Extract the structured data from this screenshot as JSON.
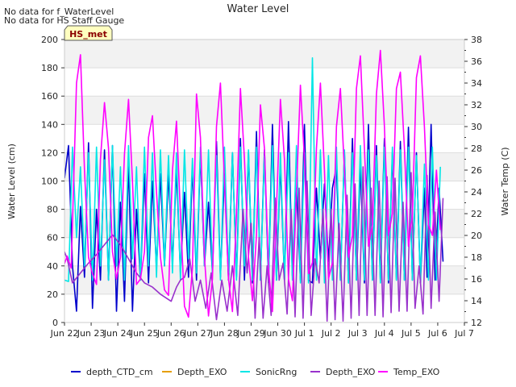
{
  "chart_data": {
    "type": "line",
    "title": "Water Level",
    "notes": [
      "No data for f_WaterLevel",
      "No data for HS Staff Gauge"
    ],
    "station_badge": "HS_met",
    "ylabel_left": "Water Level (cm)",
    "ylabel_right": "Water Temp (C)",
    "ylim_left": [
      0,
      200
    ],
    "ylim_right": [
      12,
      38
    ],
    "yticks_left": [
      0,
      20,
      40,
      60,
      80,
      100,
      120,
      140,
      160,
      180,
      200
    ],
    "yticks_right": [
      12,
      14,
      16,
      18,
      20,
      22,
      24,
      26,
      28,
      30,
      32,
      34,
      36,
      38
    ],
    "x_range": [
      0,
      15
    ],
    "x_ticks": [
      {
        "x": 0,
        "label": "Jun 22"
      },
      {
        "x": 1,
        "label": "Jun 23"
      },
      {
        "x": 2,
        "label": "Jun 24"
      },
      {
        "x": 3,
        "label": "Jun 25"
      },
      {
        "x": 4,
        "label": "Jun 26"
      },
      {
        "x": 5,
        "label": "Jun 27"
      },
      {
        "x": 6,
        "label": "Jun 28"
      },
      {
        "x": 7,
        "label": "Jun 29"
      },
      {
        "x": 8,
        "label": "Jun 30"
      },
      {
        "x": 9,
        "label": "Jul 1"
      },
      {
        "x": 10,
        "label": "Jul 2"
      },
      {
        "x": 11,
        "label": "Jul 3"
      },
      {
        "x": 12,
        "label": "Jul 4"
      },
      {
        "x": 13,
        "label": "Jul 5"
      },
      {
        "x": 14,
        "label": "Jul 6"
      },
      {
        "x": 15,
        "label": "Jul 7"
      }
    ],
    "legend": [
      {
        "name": "depth_CTD_cm",
        "color": "#0000cc"
      },
      {
        "name": "Depth_EXO",
        "color": "#e69f00"
      },
      {
        "name": "SonicRng",
        "color": "#00e6e6"
      },
      {
        "name": "Depth_EXO",
        "color": "#9932cc"
      },
      {
        "name": "Temp_EXO",
        "color": "#ff00ff"
      }
    ],
    "series": [
      {
        "name": "depth_CTD_cm",
        "axis": "left",
        "color": "#0000cc",
        "x": [
          0.0,
          0.15,
          0.3,
          0.45,
          0.6,
          0.75,
          0.9,
          1.05,
          1.2,
          1.35,
          1.5,
          1.65,
          1.8,
          1.95,
          2.1,
          2.25,
          2.4,
          2.55,
          2.7,
          2.85,
          3.0,
          3.15,
          3.3,
          3.45,
          3.6,
          3.75,
          3.9,
          4.05,
          4.2,
          4.35,
          4.5,
          4.65,
          4.8,
          4.95,
          5.1,
          5.25,
          5.4,
          5.55,
          5.7,
          5.85,
          6.0,
          6.15,
          6.3,
          6.45,
          6.6,
          6.75,
          6.9,
          7.05,
          7.2,
          7.35,
          7.5,
          7.65,
          7.8,
          7.95,
          8.1,
          8.25,
          8.4,
          8.55,
          8.7,
          8.85,
          9.0,
          9.15,
          9.3,
          9.45,
          9.6,
          9.75,
          9.9,
          10.05,
          10.2,
          10.35,
          10.5,
          10.65,
          10.8,
          10.95,
          11.1,
          11.25,
          11.4,
          11.55,
          11.7,
          11.85,
          12.0,
          12.15,
          12.3,
          12.45,
          12.6,
          12.75,
          12.9,
          13.05,
          13.2,
          13.35,
          13.5,
          13.6,
          13.75,
          13.9,
          14.05,
          14.2
        ],
        "y": [
          102,
          125,
          40,
          8,
          82,
          32,
          127,
          10,
          80,
          30,
          122,
          30,
          125,
          8,
          85,
          15,
          112,
          8,
          80,
          30,
          105,
          28,
          100,
          38,
          105,
          40,
          105,
          42,
          108,
          35,
          92,
          32,
          110,
          30,
          120,
          40,
          85,
          35,
          128,
          32,
          105,
          30,
          120,
          32,
          130,
          30,
          120,
          28,
          135,
          30,
          122,
          28,
          140,
          30,
          112,
          30,
          142,
          33,
          95,
          30,
          140,
          30,
          28,
          95,
          45,
          98,
          43,
          95,
          110,
          30,
          120,
          28,
          130,
          30,
          110,
          28,
          140,
          30,
          125,
          30,
          130,
          28,
          120,
          30,
          128,
          30,
          138,
          30,
          120,
          28,
          95,
          32,
          140,
          30,
          95,
          43
        ]
      },
      {
        "name": "SonicRng",
        "axis": "left",
        "color": "#00e6e6",
        "x": [
          0.0,
          0.15,
          0.3,
          0.45,
          0.6,
          0.75,
          0.9,
          1.05,
          1.2,
          1.35,
          1.5,
          1.65,
          1.8,
          1.95,
          2.1,
          2.25,
          2.4,
          2.55,
          2.7,
          2.85,
          3.0,
          3.15,
          3.3,
          3.45,
          3.6,
          3.75,
          3.9,
          4.05,
          4.2,
          4.35,
          4.5,
          4.65,
          4.8,
          4.95,
          5.1,
          5.25,
          5.4,
          5.55,
          5.7,
          5.85,
          6.0,
          6.15,
          6.3,
          6.45,
          6.6,
          6.75,
          6.9,
          7.05,
          7.2,
          7.35,
          7.5,
          7.65,
          7.8,
          7.95,
          8.1,
          8.25,
          8.4,
          8.55,
          8.7,
          8.85,
          9.0,
          9.15,
          9.3,
          9.45,
          9.6,
          9.75,
          9.9,
          10.05,
          10.2,
          10.35,
          10.5,
          10.65,
          10.8,
          10.95,
          11.1,
          11.25,
          11.4,
          11.55,
          11.7,
          11.85,
          12.0,
          12.15,
          12.3,
          12.45,
          12.6,
          12.75,
          12.9,
          13.05,
          13.2,
          13.35,
          13.5,
          13.65,
          13.8,
          13.95,
          14.1
        ],
        "y": [
          30,
          29,
          124,
          60,
          110,
          40,
          120,
          30,
          124,
          40,
          115,
          30,
          125,
          40,
          110,
          30,
          125,
          45,
          110,
          30,
          124,
          40,
          120,
          32,
          122,
          40,
          118,
          35,
          120,
          30,
          122,
          45,
          116,
          35,
          124,
          40,
          122,
          35,
          118,
          30,
          124,
          35,
          120,
          30,
          124,
          40,
          122,
          30,
          124,
          30,
          118,
          30,
          125,
          30,
          120,
          30,
          120,
          30,
          125,
          28,
          120,
          28,
          187,
          30,
          122,
          28,
          118,
          30,
          124,
          30,
          122,
          28,
          120,
          30,
          125,
          30,
          122,
          30,
          118,
          28,
          124,
          30,
          124,
          30,
          122,
          30,
          124,
          30,
          118,
          30,
          112,
          30,
          124,
          30,
          110
        ]
      },
      {
        "name": "Depth_EXO",
        "axis": "left",
        "color": "#9932cc",
        "x": [
          0.0,
          0.1,
          0.3,
          0.6,
          0.9,
          1.2,
          1.5,
          1.8,
          2.1,
          2.4,
          2.7,
          3.0,
          3.3,
          3.6,
          4.0,
          4.2,
          4.35,
          4.5,
          4.7,
          4.9,
          5.1,
          5.3,
          5.5,
          5.7,
          5.9,
          6.1,
          6.3,
          6.5,
          6.7,
          6.85,
          7.0,
          7.15,
          7.3,
          7.45,
          7.6,
          7.75,
          7.9,
          8.05,
          8.2,
          8.35,
          8.5,
          8.65,
          8.8,
          8.95,
          9.1,
          9.25,
          9.4,
          9.55,
          9.7,
          9.85,
          10.0,
          10.15,
          10.3,
          10.45,
          10.6,
          10.75,
          10.9,
          11.05,
          11.2,
          11.35,
          11.5,
          11.65,
          11.8,
          11.95,
          12.1,
          12.25,
          12.4,
          12.55,
          12.7,
          12.85,
          13.0,
          13.15,
          13.3,
          13.45,
          13.6,
          13.75,
          13.9,
          14.05,
          14.2
        ],
        "y": [
          50,
          45,
          28,
          35,
          42,
          48,
          55,
          62,
          55,
          45,
          35,
          28,
          25,
          20,
          15,
          25,
          30,
          32,
          45,
          15,
          30,
          10,
          35,
          2,
          30,
          8,
          40,
          5,
          80,
          35,
          70,
          3,
          60,
          3,
          40,
          5,
          88,
          30,
          42,
          6,
          80,
          4,
          95,
          3,
          100,
          5,
          45,
          28,
          80,
          1,
          80,
          2,
          70,
          1,
          90,
          3,
          98,
          5,
          110,
          5,
          95,
          5,
          100,
          4,
          103,
          7,
          102,
          8,
          85,
          8,
          106,
          10,
          40,
          6,
          104,
          10,
          78,
          15,
          88
        ]
      },
      {
        "name": "Temp_EXO",
        "axis": "right",
        "color": "#ff00ff",
        "x": [
          0.0,
          0.1,
          0.25,
          0.45,
          0.6,
          0.75,
          0.9,
          1.05,
          1.2,
          1.35,
          1.5,
          1.65,
          1.8,
          1.95,
          2.1,
          2.25,
          2.4,
          2.55,
          2.7,
          2.85,
          3.0,
          3.15,
          3.3,
          3.45,
          3.6,
          3.75,
          3.9,
          4.05,
          4.2,
          4.35,
          4.5,
          4.65,
          4.8,
          4.95,
          5.1,
          5.25,
          5.4,
          5.55,
          5.7,
          5.85,
          6.0,
          6.15,
          6.3,
          6.45,
          6.6,
          6.75,
          6.9,
          7.05,
          7.2,
          7.35,
          7.5,
          7.65,
          7.8,
          7.95,
          8.1,
          8.25,
          8.4,
          8.55,
          8.7,
          8.85,
          9.0,
          9.15,
          9.3,
          9.45,
          9.6,
          9.75,
          9.9,
          10.05,
          10.2,
          10.35,
          10.5,
          10.65,
          10.8,
          10.95,
          11.1,
          11.25,
          11.4,
          11.55,
          11.7,
          11.85,
          12.0,
          12.15,
          12.3,
          12.45,
          12.6,
          12.75,
          12.9,
          13.05,
          13.2,
          13.35,
          13.5,
          13.65,
          13.8,
          13.95,
          14.1
        ],
        "y": [
          17.4,
          18.1,
          17.0,
          34.0,
          36.6,
          26.0,
          18.0,
          16.5,
          15.5,
          27.0,
          32.2,
          28.0,
          18.5,
          16.0,
          18.0,
          27.5,
          32.5,
          25.0,
          15.5,
          16.0,
          18.5,
          29.0,
          31.0,
          24.0,
          18.0,
          15.0,
          14.5,
          26.0,
          30.5,
          22.0,
          13.5,
          12.5,
          17.0,
          33.0,
          29.0,
          18.0,
          12.6,
          16.0,
          30.0,
          34.0,
          25.0,
          16.0,
          13.0,
          22.0,
          33.5,
          27.0,
          18.0,
          14.0,
          20.0,
          32.0,
          28.0,
          17.0,
          13.0,
          22.5,
          32.5,
          27.0,
          16.0,
          14.0,
          24.0,
          33.8,
          27.0,
          16.5,
          17.5,
          28.0,
          34.0,
          26.0,
          16.0,
          17.5,
          30.0,
          33.5,
          26.0,
          18.0,
          20.0,
          33.5,
          36.5,
          28.0,
          19.0,
          21.0,
          33.0,
          37.0,
          30.0,
          20.0,
          22.0,
          33.5,
          35.0,
          28.0,
          19.0,
          22.0,
          34.5,
          36.5,
          30.0,
          21.0,
          20.0,
          26.0,
          20.5
        ]
      }
    ]
  }
}
